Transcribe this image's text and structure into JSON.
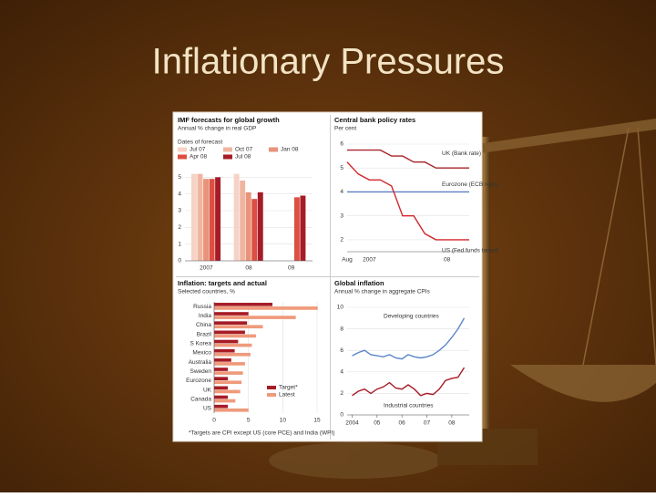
{
  "title": "Inflationary Pressures",
  "chart_data": [
    {
      "type": "bar",
      "title": "IMF forecasts for global growth",
      "subtitle": "Annual % change in real GDP",
      "legend_title": "Dates of forecast",
      "categories": [
        "2007",
        "08",
        "09"
      ],
      "series": [
        {
          "name": "Jul 07",
          "color": "#f6d3c6",
          "values": [
            5.2,
            5.2,
            null
          ]
        },
        {
          "name": "Oct 07",
          "color": "#f0b59f",
          "values": [
            5.2,
            4.8,
            null
          ]
        },
        {
          "name": "Jan 08",
          "color": "#e8937a",
          "values": [
            4.9,
            4.1,
            null
          ]
        },
        {
          "name": "Apr 08",
          "color": "#dc4f42",
          "values": [
            4.9,
            3.7,
            3.8
          ]
        },
        {
          "name": "Jul 08",
          "color": "#a61c26",
          "values": [
            5.0,
            4.1,
            3.9
          ]
        }
      ],
      "ylim": [
        0,
        6
      ],
      "yticks": [
        0,
        1,
        2,
        3,
        4,
        5
      ],
      "grid": true
    },
    {
      "type": "line",
      "title": "Central bank policy rates",
      "subtitle": "Per cent",
      "categories": [
        "Aug",
        null,
        "2007",
        null,
        null,
        null,
        null,
        null,
        null,
        "08",
        null,
        null
      ],
      "series": [
        {
          "name": "UK (Bank rate)",
          "color": "#a8232a",
          "values": [
            5.75,
            5.75,
            5.75,
            5.75,
            5.5,
            5.5,
            5.25,
            5.25,
            5.0,
            5.0,
            5.0,
            5.0
          ]
        },
        {
          "name": "Eurozone (ECB repo)",
          "color": "#5b7fc7",
          "values": [
            4.0,
            4.0,
            4.0,
            4.0,
            4.0,
            4.0,
            4.0,
            4.0,
            4.0,
            4.0,
            4.0,
            4.0
          ]
        },
        {
          "name": "US (Fed funds target)",
          "color": "#d3262b",
          "values": [
            5.25,
            4.75,
            4.5,
            4.5,
            4.25,
            3.0,
            3.0,
            2.25,
            2.0,
            2.0,
            2.0,
            2.0
          ]
        }
      ],
      "ylim": [
        1.5,
        6
      ],
      "yticks": [
        2,
        3,
        4,
        5,
        6
      ],
      "grid": true
    },
    {
      "type": "barh",
      "title": "Inflation: targets and actual",
      "subtitle": "Selected countries, %",
      "categories": [
        "Russia",
        "India",
        "China",
        "Brazil",
        "S Korea",
        "Mexico",
        "Australia",
        "Sweden",
        "Eurozone",
        "UK",
        "Canada",
        "US"
      ],
      "series": [
        {
          "name": "Target*",
          "color": "#a61c26",
          "values": [
            8.5,
            5.0,
            4.8,
            4.5,
            3.5,
            3.0,
            2.5,
            2.0,
            2.0,
            2.0,
            2.0,
            2.0
          ]
        },
        {
          "name": "Latest",
          "color": "#ef9a7c",
          "values": [
            15.1,
            11.9,
            7.1,
            6.1,
            5.5,
            5.3,
            4.5,
            4.2,
            4.0,
            3.8,
            3.1,
            5.0
          ]
        }
      ],
      "xlim": [
        0,
        15
      ],
      "xticks": [
        0,
        5,
        10,
        15
      ],
      "grid": true,
      "note": "*Targets are CPI except US (core PCE) and India (WPI)"
    },
    {
      "type": "line",
      "title": "Global inflation",
      "subtitle": "Annual % change in aggregate CPIs",
      "x": [
        2004,
        2004.25,
        2004.5,
        2004.75,
        2005,
        2005.25,
        2005.5,
        2005.75,
        2006,
        2006.25,
        2006.5,
        2006.75,
        2007,
        2007.25,
        2007.5,
        2007.75,
        2008,
        2008.25,
        2008.5
      ],
      "series": [
        {
          "name": "Developing countries",
          "color": "#5b86c9",
          "values": [
            5.5,
            5.8,
            6.0,
            5.6,
            5.5,
            5.4,
            5.6,
            5.3,
            5.2,
            5.6,
            5.4,
            5.3,
            5.4,
            5.6,
            6.0,
            6.5,
            7.2,
            8.0,
            9.0
          ]
        },
        {
          "name": "Industrial countries",
          "color": "#a61c26",
          "values": [
            1.8,
            2.2,
            2.4,
            2.0,
            2.4,
            2.6,
            3.0,
            2.5,
            2.4,
            2.8,
            2.4,
            1.8,
            2.0,
            1.9,
            2.4,
            3.2,
            3.4,
            3.5,
            4.4
          ]
        }
      ],
      "xlim": [
        2003.8,
        2008.7
      ],
      "xticks": [
        2004,
        {
          "value": 2005,
          "label": "05"
        },
        {
          "value": 2006,
          "label": "06"
        },
        {
          "value": 2007,
          "label": "07"
        },
        {
          "value": 2008,
          "label": "08"
        }
      ],
      "ylim": [
        0,
        10
      ],
      "yticks": [
        0,
        2,
        4,
        6,
        8,
        10
      ],
      "grid": true
    }
  ]
}
